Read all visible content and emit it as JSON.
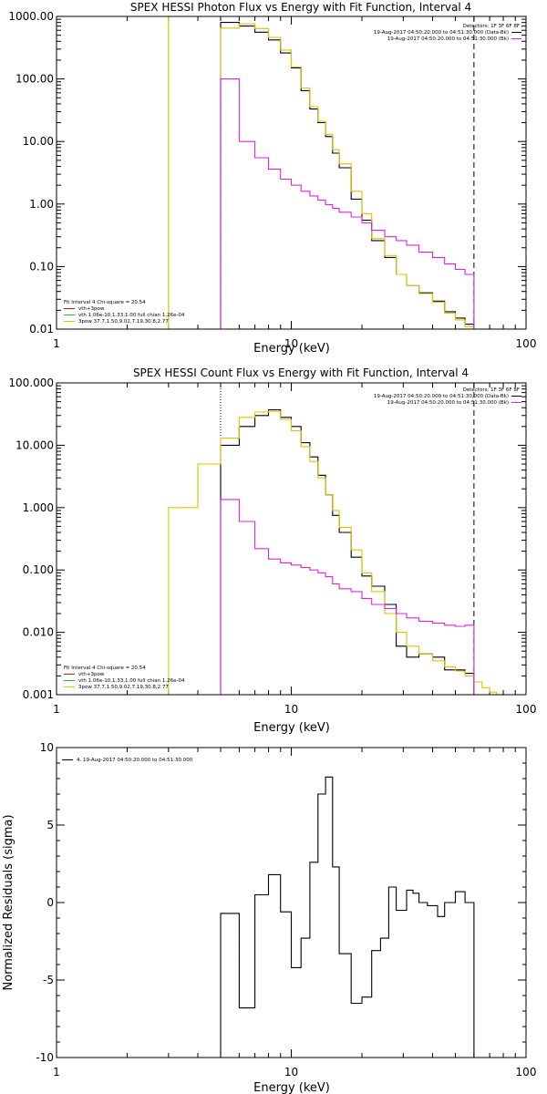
{
  "chart_data": [
    {
      "type": "line",
      "panel": "photon",
      "title": "SPEX HESSI Photon Flux vs Energy with Fit Function, Interval 4",
      "xlabel": "Energy (keV)",
      "ylabel": "",
      "xscale": "log",
      "yscale": "log",
      "xlim": [
        1,
        100
      ],
      "ylim": [
        0.01,
        1000
      ],
      "yticks": [
        "1000.00",
        "100.00",
        "10.00",
        "1.00",
        "0.10",
        "0.01"
      ],
      "xticks": [
        "1",
        "10",
        "100"
      ],
      "legend_right": {
        "header": "Detectors: 1F 3F 6F 8F",
        "entries": [
          {
            "text": "19-Aug-2017 04:50:20.000 to 04:51:30.000 (Data-Bk)",
            "color": "#000000"
          },
          {
            "text": "19-Aug-2017 04:50:20.000 to 04:51:30.000 (Bk)",
            "color": "#e020e0"
          }
        ]
      },
      "legend_left": {
        "header": "Fit Interval 4   Chi-square = 20.54",
        "entries": [
          {
            "text": "vth+3pow",
            "color": "#e01010"
          },
          {
            "text": "vth 1.06e-10,1.33,1.00   full chian 1.26e-04",
            "color": "#20c020"
          },
          {
            "text": "3pow 37.7,1.50,9.02,7.19,30.8,2.77",
            "color": "#e0c000"
          }
        ]
      },
      "markers": {
        "fit_start_dotted": 5.0,
        "fit_end_dashed": 60.0,
        "yellow_vertical": 3.0
      },
      "series": [
        {
          "name": "Data-Bk",
          "color": "#000000",
          "edges": [
            5.0,
            6.0,
            7.0,
            8.0,
            9.0,
            10.0,
            11.0,
            12.0,
            13.0,
            14.0,
            15.0,
            16.0,
            18.0,
            20.0,
            22.0,
            25.0,
            28.0,
            31.0,
            35.0,
            40.0,
            45.0,
            50.0,
            55.0,
            60.0
          ],
          "values": [
            800,
            700,
            560,
            420,
            260,
            150,
            65,
            33,
            20,
            12,
            6.5,
            3.8,
            1.2,
            0.55,
            0.26,
            0.14,
            0.075,
            0.05,
            0.038,
            0.028,
            0.019,
            0.015,
            0.012
          ]
        },
        {
          "name": "Fit",
          "color": "#e0c000",
          "edges": [
            3.0,
            5.0,
            6.0,
            7.0,
            8.0,
            9.0,
            10.0,
            11.0,
            12.0,
            13.0,
            14.0,
            15.0,
            16.0,
            18.0,
            20.0,
            22.0,
            25.0,
            28.0,
            31.0,
            35.0,
            40.0,
            45.0,
            50.0,
            55.0,
            60.0,
            65.0,
            70.0
          ],
          "values": [
            0.005,
            650,
            760,
            640,
            460,
            290,
            155,
            72,
            36,
            21,
            13,
            7.4,
            4.4,
            1.6,
            0.7,
            0.28,
            0.15,
            0.075,
            0.05,
            0.037,
            0.027,
            0.018,
            0.014,
            0.011,
            0.009,
            0.008
          ]
        },
        {
          "name": "Bk",
          "color": "#e020e0",
          "edges": [
            5.0,
            6.0,
            7.0,
            8.0,
            9.0,
            10.0,
            11.0,
            12.0,
            13.0,
            14.0,
            15.0,
            16.0,
            18.0,
            20.0,
            22.0,
            25.0,
            28.0,
            31.0,
            35.0,
            40.0,
            45.0,
            50.0,
            55.0,
            60.0
          ],
          "values": [
            100,
            10,
            5.5,
            3.6,
            2.5,
            2.0,
            1.6,
            1.35,
            1.15,
            0.98,
            0.85,
            0.74,
            0.62,
            0.5,
            0.38,
            0.3,
            0.26,
            0.22,
            0.17,
            0.14,
            0.11,
            0.09,
            0.075
          ]
        }
      ]
    },
    {
      "type": "line",
      "panel": "count",
      "title": "SPEX HESSI Count Flux vs Energy with Fit Function, Interval 4",
      "xlabel": "Energy (keV)",
      "ylabel": "",
      "xscale": "log",
      "yscale": "log",
      "xlim": [
        1,
        100
      ],
      "ylim": [
        0.001,
        100
      ],
      "yticks": [
        "100.000",
        "10.000",
        "1.000",
        "0.100",
        "0.010",
        "0.001"
      ],
      "xticks": [
        "1",
        "10",
        "100"
      ],
      "legend_right": {
        "header": "Detectors: 1F 3F 6F 8F",
        "entries": [
          {
            "text": "19-Aug-2017 04:50:20.000 to 04:51:30.000 (Data-Bk)",
            "color": "#000000"
          },
          {
            "text": "19-Aug-2017 04:50:20.000 to 04:51:30.000 (Bk)",
            "color": "#e020e0"
          }
        ]
      },
      "legend_left": {
        "header": "Fit Interval 4   Chi-square = 20.54",
        "entries": [
          {
            "text": "vth+3pow",
            "color": "#e01010"
          },
          {
            "text": "vth 1.06e-10,1.33,1.00   full chian 1.26e-04",
            "color": "#20c020"
          },
          {
            "text": "3pow 37.7,1.50,9.02,7.19,30.8,2.77",
            "color": "#e0c000"
          }
        ]
      },
      "markers": {
        "fit_start_dotted": 5.0,
        "fit_end_dashed": 60.0
      },
      "series": [
        {
          "name": "Data-Bk",
          "color": "#000000",
          "edges": [
            5.0,
            6.0,
            7.0,
            8.0,
            9.0,
            10.0,
            11.0,
            12.0,
            13.0,
            14.0,
            15.0,
            16.0,
            18.0,
            20.0,
            22.0,
            25.0,
            28.0,
            31.0,
            35.0,
            40.0,
            45.0,
            50.0,
            55.0,
            60.0
          ],
          "values": [
            10,
            20,
            30,
            37,
            28,
            20,
            11,
            6.5,
            3.3,
            1.6,
            0.75,
            0.4,
            0.16,
            0.08,
            0.055,
            0.028,
            0.006,
            0.004,
            0.0045,
            0.004,
            0.0025,
            0.0025,
            0.0022
          ]
        },
        {
          "name": "Fit",
          "color": "#e0c000",
          "edges": [
            3.0,
            4.0,
            5.0,
            6.0,
            7.0,
            8.0,
            9.0,
            10.0,
            11.0,
            12.0,
            13.0,
            14.0,
            15.0,
            16.0,
            18.0,
            20.0,
            22.0,
            25.0,
            28.0,
            31.0,
            35.0,
            40.0,
            45.0,
            50.0,
            55.0,
            60.0,
            65.0,
            70.0,
            75.0,
            80.0
          ],
          "values": [
            1.0,
            5.0,
            13,
            28,
            34,
            35,
            26,
            17,
            9.5,
            5.5,
            3.0,
            1.6,
            0.9,
            0.48,
            0.21,
            0.09,
            0.045,
            0.02,
            0.01,
            0.006,
            0.0045,
            0.0035,
            0.0028,
            0.0024,
            0.002,
            0.0016,
            0.0013,
            0.0011,
            0.001
          ]
        },
        {
          "name": "Bk",
          "color": "#e020e0",
          "edges": [
            5.0,
            6.0,
            7.0,
            8.0,
            9.0,
            10.0,
            11.0,
            12.0,
            13.0,
            14.0,
            15.0,
            16.0,
            18.0,
            20.0,
            22.0,
            25.0,
            28.0,
            31.0,
            35.0,
            40.0,
            45.0,
            50.0,
            55.0,
            60.0
          ],
          "values": [
            1.35,
            0.6,
            0.22,
            0.15,
            0.13,
            0.12,
            0.11,
            0.1,
            0.09,
            0.078,
            0.06,
            0.05,
            0.045,
            0.035,
            0.028,
            0.024,
            0.02,
            0.017,
            0.015,
            0.014,
            0.013,
            0.0125,
            0.013
          ]
        }
      ]
    },
    {
      "type": "line",
      "panel": "residuals",
      "title": "",
      "xlabel": "Energy (keV)",
      "ylabel": "Normalized Residuals (sigma)",
      "xscale": "log",
      "yscale": "linear",
      "xlim": [
        1,
        100
      ],
      "ylim": [
        -10,
        10
      ],
      "yticks": [
        "10",
        "5",
        "0",
        "-5",
        "-10"
      ],
      "xticks": [
        "1",
        "10",
        "100"
      ],
      "legend": "4. 19-Aug-2017 04:50:20.000 to 04:51:30.000",
      "series": [
        {
          "name": "4. 19-Aug-2017 04:50:20.000 to 04:51:30.000",
          "color": "#000000",
          "edges": [
            5.0,
            6.0,
            7.0,
            7.5,
            8.0,
            9.0,
            10.0,
            11.0,
            12.0,
            13.0,
            14.0,
            15.0,
            16.0,
            18.0,
            20.0,
            22.0,
            24.0,
            26.0,
            28.0,
            31.0,
            33.0,
            35.0,
            38.0,
            42.0,
            45.0,
            50.0,
            55.0,
            60.0
          ],
          "values": [
            -0.7,
            -6.8,
            0.5,
            0.5,
            1.8,
            -0.6,
            -4.2,
            -2.3,
            2.6,
            7.0,
            8.1,
            2.3,
            -3.3,
            -6.5,
            -6.1,
            -3.1,
            -2.3,
            1.0,
            -0.5,
            0.8,
            0.6,
            0.0,
            -0.2,
            -0.9,
            0.0,
            0.7,
            0.0
          ]
        }
      ]
    }
  ]
}
